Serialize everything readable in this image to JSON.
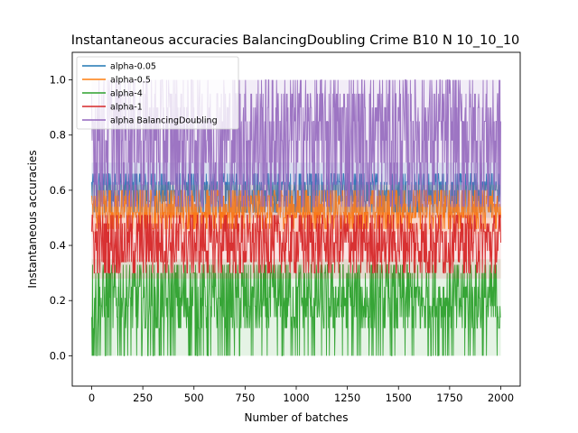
{
  "chart_data": {
    "type": "line",
    "title": "Instantaneous accuracies BalancingDoubling Crime B10 N 10_10_10",
    "xlabel": "Number of batches",
    "ylabel": "Instantaneous accuracies",
    "xlim": [
      -95,
      2095
    ],
    "ylim": [
      -0.11,
      1.1
    ],
    "xticks": [
      0,
      250,
      500,
      750,
      1000,
      1250,
      1500,
      1750,
      2000
    ],
    "yticks": [
      0.0,
      0.2,
      0.4,
      0.6,
      0.8,
      1.0
    ],
    "xtick_labels": [
      "0",
      "250",
      "500",
      "750",
      "1000",
      "1250",
      "1500",
      "1750",
      "2000"
    ],
    "ytick_labels": [
      "0.0",
      "0.2",
      "0.4",
      "0.6",
      "0.8",
      "1.0"
    ],
    "grid": false,
    "legend_position": "top-left",
    "n_batches": 2000,
    "series": [
      {
        "name": "alpha-0.05",
        "color": "#1f77b4",
        "levels": [
          0.52,
          0.56,
          0.6,
          0.63,
          0.66
        ],
        "band_min": 0.5,
        "band_max": 0.7
      },
      {
        "name": "alpha-0.5",
        "color": "#ff7f0e",
        "levels": [
          0.46,
          0.5,
          0.52,
          0.55,
          0.58,
          0.6
        ],
        "band_min": 0.44,
        "band_max": 0.62
      },
      {
        "name": "alpha-4",
        "color": "#2ca02c",
        "levels": [
          0.0,
          0.1,
          0.14,
          0.18,
          0.21,
          0.25,
          0.3,
          0.33
        ],
        "band_min": 0.0,
        "band_max": 0.35
      },
      {
        "name": "alpha-1",
        "color": "#d62728",
        "levels": [
          0.3,
          0.34,
          0.38,
          0.41,
          0.45,
          0.48,
          0.51
        ],
        "band_min": 0.28,
        "band_max": 0.52
      },
      {
        "name": "alpha BalancingDoubling",
        "color": "#9467bd",
        "levels": [
          0.54,
          0.62,
          0.7,
          0.78,
          0.85,
          0.9,
          0.95,
          1.0
        ],
        "band_min": 0.52,
        "band_max": 1.0
      }
    ]
  }
}
